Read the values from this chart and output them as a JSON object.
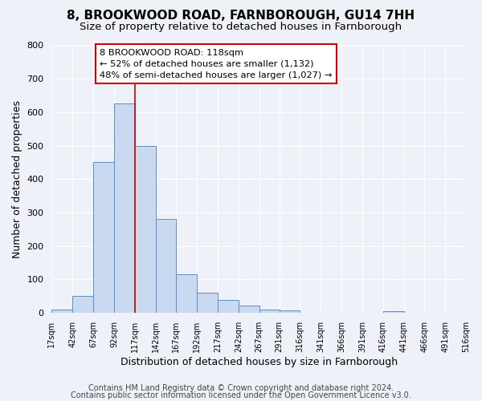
{
  "title": "8, BROOKWOOD ROAD, FARNBOROUGH, GU14 7HH",
  "subtitle": "Size of property relative to detached houses in Farnborough",
  "xlabel": "Distribution of detached houses by size in Farnborough",
  "ylabel": "Number of detached properties",
  "bar_edges": [
    17,
    42,
    67,
    92,
    117,
    142,
    167,
    192,
    217,
    242,
    267,
    291,
    316,
    341,
    366,
    391,
    416,
    441,
    466,
    491,
    516
  ],
  "bar_heights": [
    10,
    50,
    450,
    625,
    500,
    280,
    115,
    60,
    38,
    22,
    10,
    8,
    0,
    0,
    0,
    0,
    5,
    0,
    0,
    0
  ],
  "bar_color": "#c9d9f0",
  "bar_edge_color": "#5b8fc9",
  "property_line_x": 117,
  "annotation_text": "8 BROOKWOOD ROAD: 118sqm\n← 52% of detached houses are smaller (1,132)\n48% of semi-detached houses are larger (1,027) →",
  "annotation_box_color": "#ffffff",
  "annotation_box_edge_color": "#cc0000",
  "vline_color": "#cc0000",
  "ylim": [
    0,
    800
  ],
  "yticks": [
    0,
    100,
    200,
    300,
    400,
    500,
    600,
    700,
    800
  ],
  "footer_line1": "Contains HM Land Registry data © Crown copyright and database right 2024.",
  "footer_line2": "Contains public sector information licensed under the Open Government Licence v3.0.",
  "bg_color": "#eef2f8",
  "plot_bg_color": "#eef2f8",
  "title_fontsize": 11,
  "subtitle_fontsize": 9.5,
  "xlabel_fontsize": 9,
  "ylabel_fontsize": 9,
  "footer_fontsize": 7
}
